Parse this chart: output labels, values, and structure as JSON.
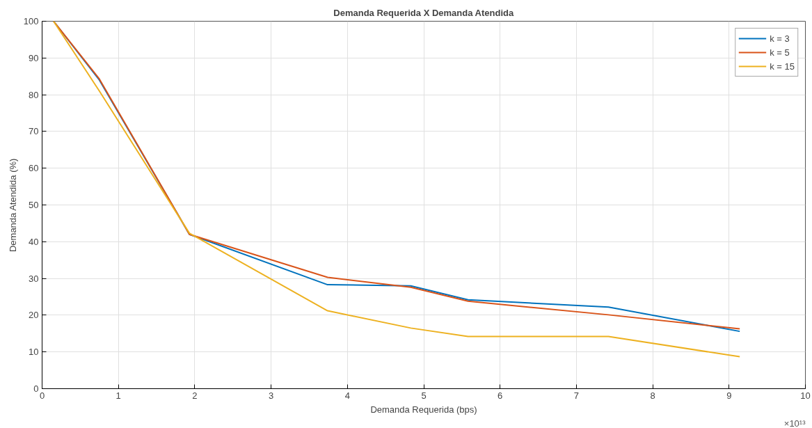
{
  "chart_data": {
    "type": "line",
    "title": "Demanda Requerida X Demanda Atendida",
    "xlabel": "Demanda Requerida (bps)",
    "ylabel": "Demanda Atendida (%)",
    "x": [
      0.15,
      0.75,
      1.93,
      3.74,
      4.83,
      5.58,
      7.42,
      9.14
    ],
    "series": [
      {
        "name": "k = 3",
        "color": "#0072bd",
        "values": [
          100,
          84,
          42,
          28.3,
          28,
          24.2,
          22.2,
          15.6
        ]
      },
      {
        "name": "k = 5",
        "color": "#d95319",
        "values": [
          100,
          84.3,
          42,
          30.3,
          27.6,
          23.8,
          20.1,
          16.3
        ]
      },
      {
        "name": "k = 15",
        "color": "#edb120",
        "values": [
          100,
          81,
          42.3,
          21.2,
          16.5,
          14.2,
          14.2,
          8.7
        ]
      }
    ],
    "xlim": [
      0,
      10
    ],
    "ylim": [
      0,
      100
    ],
    "xticks": [
      0,
      1,
      2,
      3,
      4,
      5,
      6,
      7,
      8,
      9,
      10
    ],
    "yticks": [
      0,
      10,
      20,
      30,
      40,
      50,
      60,
      70,
      80,
      90,
      100
    ],
    "annotations": [
      "×10¹³"
    ],
    "grid": true,
    "legend": "top right",
    "line_style": "solid",
    "marker": "none"
  }
}
